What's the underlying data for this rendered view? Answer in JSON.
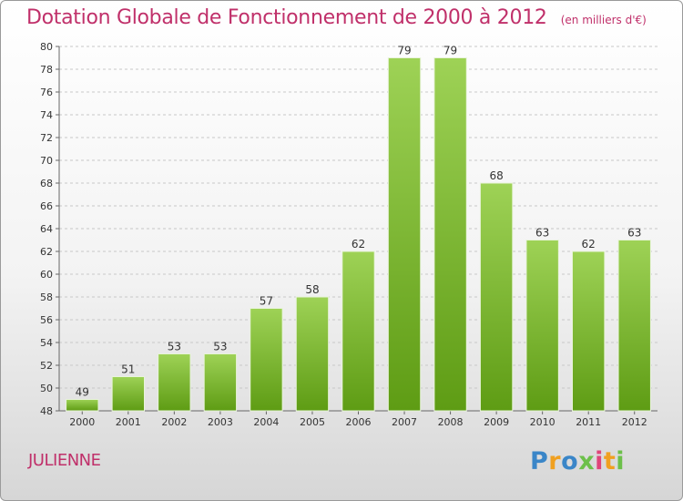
{
  "title": "Dotation Globale de Fonctionnement de 2000 à 2012",
  "subtitle": "(en milliers d'€)",
  "commune": "JULIENNE",
  "brand": {
    "text": "Proxiti",
    "letters": [
      {
        "char": "P",
        "color": "#3a86c8"
      },
      {
        "char": "r",
        "color": "#f0a020"
      },
      {
        "char": "o",
        "color": "#3a86c8"
      },
      {
        "char": "x",
        "color": "#6cc04a"
      },
      {
        "char": "i",
        "color": "#e0457a"
      },
      {
        "char": "t",
        "color": "#f0a020"
      },
      {
        "char": "i",
        "color": "#6cc04a"
      }
    ]
  },
  "colors": {
    "bar_top": "#9ed256",
    "bar_bottom": "#5e9c14",
    "title": "#c0306a"
  },
  "chart_data": {
    "type": "bar",
    "categories": [
      "2000",
      "2001",
      "2002",
      "2003",
      "2004",
      "2005",
      "2006",
      "2007",
      "2008",
      "2009",
      "2010",
      "2011",
      "2012"
    ],
    "values": [
      49,
      51,
      53,
      53,
      57,
      58,
      62,
      79,
      79,
      68,
      63,
      62,
      63
    ],
    "ylim": [
      48,
      80
    ],
    "yticks": [
      48,
      50,
      52,
      54,
      56,
      58,
      60,
      62,
      64,
      66,
      68,
      70,
      72,
      74,
      76,
      78,
      80
    ],
    "grid": "horizontal dashed",
    "data_labels": true,
    "xlabel": "",
    "ylabel": ""
  }
}
